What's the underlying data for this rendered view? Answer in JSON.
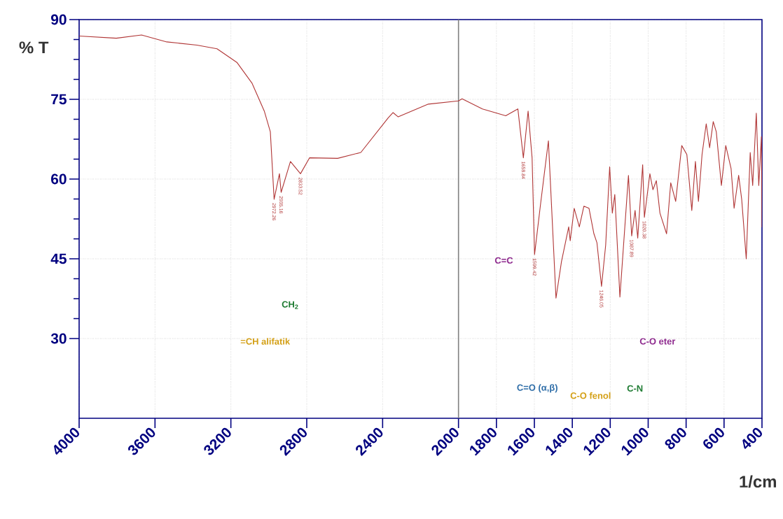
{
  "chart_data": {
    "type": "line",
    "xlabel": "1/cm",
    "ylabel": "% T",
    "xlim": [
      4000,
      400
    ],
    "ylim": [
      15,
      90
    ],
    "xticks": [
      4000,
      3600,
      3200,
      2800,
      2400,
      2000,
      1800,
      1600,
      1400,
      1200,
      1000,
      800,
      600,
      400
    ],
    "yticks": [
      30,
      45,
      60,
      75,
      90
    ],
    "grid": true,
    "ref_lines": [
      {
        "axis": "x",
        "value": 2000,
        "color": "#808080"
      }
    ],
    "series": [
      {
        "color": "#b03535",
        "x": [
          4000,
          3804,
          3671,
          3538,
          3379,
          3273,
          3167,
          3088,
          3024,
          2992,
          2972,
          2944,
          2935,
          2886,
          2833,
          2785,
          2637,
          2515,
          2371,
          2345,
          2318,
          2159,
          2000,
          1981,
          1874,
          1751,
          1687,
          1658,
          1633,
          1612,
          1599,
          1567,
          1526,
          1486,
          1457,
          1419,
          1411,
          1390,
          1363,
          1339,
          1312,
          1286,
          1270,
          1246,
          1224,
          1203,
          1189,
          1176,
          1149,
          1104,
          1087,
          1069,
          1055,
          1029,
          1020,
          991,
          975,
          957,
          938,
          903,
          881,
          855,
          823,
          796,
          770,
          751,
          735,
          716,
          694,
          676,
          657,
          641,
          614,
          591,
          563,
          547,
          523,
          507,
          483,
          462,
          449,
          430,
          417,
          403,
          400
        ],
        "values": [
          86.9,
          86.5,
          87.1,
          85.8,
          85.2,
          84.5,
          81.9,
          78,
          72.8,
          68.9,
          56.2,
          61,
          57.5,
          63.3,
          61,
          64,
          63.9,
          65,
          71.5,
          72.5,
          71.7,
          74.1,
          74.7,
          75.1,
          73.2,
          71.9,
          73.2,
          64,
          72.8,
          64,
          45.8,
          55.4,
          67.2,
          37.6,
          44.5,
          51,
          48.4,
          54.5,
          51,
          54.9,
          54.5,
          49.7,
          48,
          39.8,
          47.6,
          62.3,
          53.6,
          57.1,
          37.8,
          60.7,
          49.3,
          54.1,
          48.9,
          62.7,
          52.8,
          61,
          58,
          59.7,
          53.6,
          49.7,
          59.3,
          55.8,
          66.3,
          64.6,
          54.1,
          63.3,
          55.8,
          64.6,
          70.4,
          65.9,
          70.8,
          68.9,
          58.8,
          66.3,
          62,
          54.5,
          60.7,
          56.2,
          45,
          65,
          58.8,
          72.4,
          58.8,
          68,
          51
        ]
      }
    ],
    "annotations": [
      {
        "text": "2972.26",
        "x": 2972,
        "y": 56.2
      },
      {
        "text": "2935.16",
        "x": 2935,
        "y": 57.5
      },
      {
        "text": "2833.52",
        "x": 2833,
        "y": 61
      },
      {
        "text": "1658.84",
        "x": 1658,
        "y": 64
      },
      {
        "text": "1599.42",
        "x": 1599,
        "y": 45.8
      },
      {
        "text": "1246.05",
        "x": 1246,
        "y": 39.8
      },
      {
        "text": "1087.89",
        "x": 1087,
        "y": 49.3
      },
      {
        "text": "1020.38",
        "x": 1020,
        "y": 52.8
      },
      "=CH alifatik",
      "CH$_{2}$",
      "C=C",
      "C=O (α,β)",
      "C-O fenol",
      "C-N",
      "C-O eter"
    ]
  }
}
